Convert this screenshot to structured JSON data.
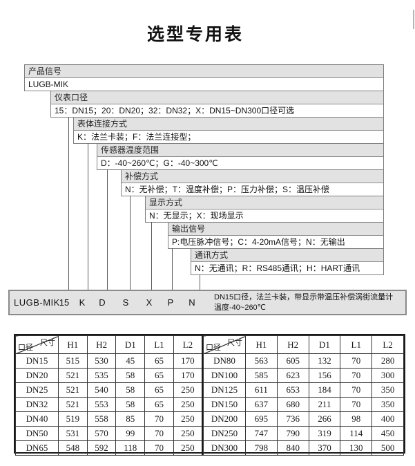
{
  "page": {
    "title": "选型专用表"
  },
  "selection_diagram": {
    "levels": [
      {
        "header": "产品信号",
        "value": "LUGB-MIK"
      },
      {
        "header": "仪表口径",
        "value": "15：DN15；20：DN20；32：DN32；X：DN15~DN300口径可选"
      },
      {
        "header": "表体连接方式",
        "value": "K：法兰卡装；F：法兰连接型；"
      },
      {
        "header": "传感器温度范围",
        "value": "D：-40~260℃；G：-40~300℃"
      },
      {
        "header": "补偿方式",
        "value": "N：无补偿；T：温度补偿；P：压力补偿；S：温压补偿"
      },
      {
        "header": "显示方式",
        "value": "N：无显示；X：现场显示"
      },
      {
        "header": "输出信号",
        "value": "P:电压脉冲信号；C：4-20mA信号；N：无输出"
      },
      {
        "header": "通讯方式",
        "value": "N：无通讯；R：RS485通讯；H：HART通讯"
      }
    ],
    "example": {
      "model": "LUGB-MIK",
      "codes": [
        "15",
        "K",
        "D",
        "S",
        "X",
        "P",
        "N"
      ],
      "description_line1": "DN15口径，法兰卡装，带显示带温压补偿涡街流量计",
      "description_line2": "温度-40~260℃"
    }
  },
  "dimension_table": {
    "corner_top_label": "尺寸",
    "corner_bottom_label": "口径",
    "column_headers": [
      "H1",
      "H2",
      "D1",
      "L1",
      "L2"
    ],
    "left_rows": [
      {
        "size": "DN15",
        "values": [
          "515",
          "530",
          "45",
          "65",
          "170"
        ]
      },
      {
        "size": "DN20",
        "values": [
          "521",
          "535",
          "58",
          "65",
          "170"
        ]
      },
      {
        "size": "DN25",
        "values": [
          "521",
          "540",
          "58",
          "65",
          "250"
        ]
      },
      {
        "size": "DN32",
        "values": [
          "521",
          "553",
          "58",
          "65",
          "250"
        ]
      },
      {
        "size": "DN40",
        "values": [
          "519",
          "558",
          "85",
          "70",
          "250"
        ]
      },
      {
        "size": "DN50",
        "values": [
          "531",
          "570",
          "99",
          "70",
          "250"
        ]
      },
      {
        "size": "DN65",
        "values": [
          "548",
          "592",
          "118",
          "70",
          "250"
        ]
      }
    ],
    "right_rows": [
      {
        "size": "DN80",
        "values": [
          "563",
          "605",
          "132",
          "70",
          "280"
        ]
      },
      {
        "size": "DN100",
        "values": [
          "585",
          "623",
          "156",
          "70",
          "300"
        ]
      },
      {
        "size": "DN125",
        "values": [
          "611",
          "653",
          "184",
          "70",
          "350"
        ]
      },
      {
        "size": "DN150",
        "values": [
          "637",
          "680",
          "211",
          "70",
          "350"
        ]
      },
      {
        "size": "DN200",
        "values": [
          "695",
          "736",
          "266",
          "98",
          "400"
        ]
      },
      {
        "size": "DN250",
        "values": [
          "747",
          "790",
          "319",
          "114",
          "450"
        ]
      },
      {
        "size": "DN300",
        "values": [
          "798",
          "840",
          "370",
          "130",
          "500"
        ]
      }
    ]
  },
  "colors": {
    "box_header_bg": "#e2e2e2",
    "box_border": "#7f7f7f",
    "code_row_bg": "#e3e3e3",
    "table_border": "#1a1a1a"
  }
}
